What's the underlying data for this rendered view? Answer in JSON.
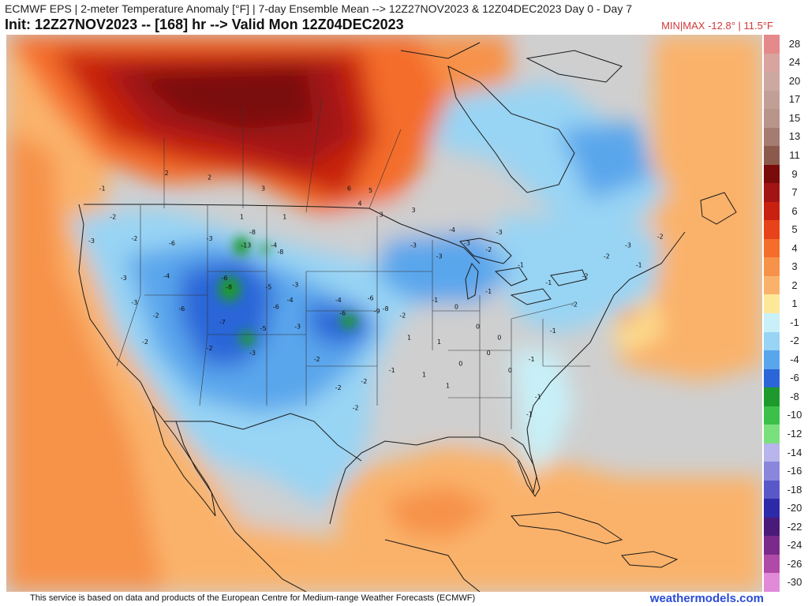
{
  "header": {
    "title_line1": "ECMWF EPS | 2-meter Temperature Anomaly [°F] | 7-day Ensemble Mean --> 12Z27NOV2023 & 12Z04DEC2023   Day 0 - Day 7",
    "title_line2": "Init: 12Z27NOV2023 -- [168] hr --> Valid Mon 12Z04DEC2023",
    "minmax": "MIN|MAX -12.8° | 11.5°F"
  },
  "colorbar": {
    "units": "°F",
    "steps": [
      {
        "label": "28",
        "color": "#e58a8a"
      },
      {
        "label": "24",
        "color": "#d9a4a0"
      },
      {
        "label": "20",
        "color": "#cda8a1"
      },
      {
        "label": "17",
        "color": "#c19f97"
      },
      {
        "label": "15",
        "color": "#b8948b"
      },
      {
        "label": "13",
        "color": "#a57c71"
      },
      {
        "label": "11",
        "color": "#8c5a4d"
      },
      {
        "label": "9",
        "color": "#7a0b0b"
      },
      {
        "label": "7",
        "color": "#a31414"
      },
      {
        "label": "6",
        "color": "#c8210f"
      },
      {
        "label": "5",
        "color": "#e8421a"
      },
      {
        "label": "4",
        "color": "#f46d2a"
      },
      {
        "label": "3",
        "color": "#f7924a"
      },
      {
        "label": "2",
        "color": "#fab26a"
      },
      {
        "label": "1",
        "color": "#fde89a"
      },
      {
        "label": "-1",
        "color": "#c8f0f8"
      },
      {
        "label": "-2",
        "color": "#98d4f4"
      },
      {
        "label": "-4",
        "color": "#5aa6ec"
      },
      {
        "label": "-6",
        "color": "#2a66d8"
      },
      {
        "label": "-8",
        "color": "#1e9a2c"
      },
      {
        "label": "-10",
        "color": "#3cc04a"
      },
      {
        "label": "-12",
        "color": "#7ae07e"
      },
      {
        "label": "-14",
        "color": "#b8b4ec"
      },
      {
        "label": "-16",
        "color": "#8a86dc"
      },
      {
        "label": "-18",
        "color": "#5a58c8"
      },
      {
        "label": "-20",
        "color": "#2c2aa8"
      },
      {
        "label": "-22",
        "color": "#4a1a7a"
      },
      {
        "label": "-24",
        "color": "#7a2a8a"
      },
      {
        "label": "-26",
        "color": "#b04aa8"
      },
      {
        "label": "-30",
        "color": "#e08ad8"
      }
    ]
  },
  "map": {
    "anomaly_labels": [
      {
        "v": "2",
        "lon": -116,
        "lat": 50
      },
      {
        "v": "2",
        "lon": -112,
        "lat": 49.6
      },
      {
        "v": "3",
        "lon": -107,
        "lat": 48.6
      },
      {
        "v": "6",
        "lon": -99,
        "lat": 48.6
      },
      {
        "v": "5",
        "lon": -97,
        "lat": 48.4
      },
      {
        "v": "4",
        "lon": -98,
        "lat": 47.2
      },
      {
        "v": "3",
        "lon": -96,
        "lat": 46.2
      },
      {
        "v": "3",
        "lon": -93,
        "lat": 46.6
      },
      {
        "v": "1",
        "lon": -109,
        "lat": 46
      },
      {
        "v": "1",
        "lon": -105,
        "lat": 46
      },
      {
        "v": "-1",
        "lon": -122,
        "lat": 48.6
      },
      {
        "v": "-2",
        "lon": -121,
        "lat": 46
      },
      {
        "v": "-3",
        "lon": -123,
        "lat": 43.8
      },
      {
        "v": "-2",
        "lon": -119,
        "lat": 44
      },
      {
        "v": "-6",
        "lon": -115.5,
        "lat": 43.6
      },
      {
        "v": "-3",
        "lon": -112,
        "lat": 44
      },
      {
        "v": "-8",
        "lon": -108,
        "lat": 44.6
      },
      {
        "v": "-13",
        "lon": -108.6,
        "lat": 43.4
      },
      {
        "v": "-4",
        "lon": -106,
        "lat": 43.4
      },
      {
        "v": "-8",
        "lon": -105.4,
        "lat": 42.8
      },
      {
        "v": "-3",
        "lon": -120,
        "lat": 40.4
      },
      {
        "v": "-4",
        "lon": -116,
        "lat": 40.6
      },
      {
        "v": "-6",
        "lon": -110.6,
        "lat": 40.4
      },
      {
        "v": "-8",
        "lon": -110.2,
        "lat": 39.6
      },
      {
        "v": "-5",
        "lon": -106.5,
        "lat": 39.6
      },
      {
        "v": "-3",
        "lon": -104,
        "lat": 39.8
      },
      {
        "v": "-4",
        "lon": -104.5,
        "lat": 38.4
      },
      {
        "v": "-6",
        "lon": -105.8,
        "lat": 37.8
      },
      {
        "v": "-3",
        "lon": -119,
        "lat": 38.2
      },
      {
        "v": "-2",
        "lon": -117,
        "lat": 37
      },
      {
        "v": "-6",
        "lon": -114.6,
        "lat": 37.6
      },
      {
        "v": "-7",
        "lon": -110.8,
        "lat": 36.4
      },
      {
        "v": "-5",
        "lon": -107,
        "lat": 35.8
      },
      {
        "v": "-3",
        "lon": -103.8,
        "lat": 36
      },
      {
        "v": "-4",
        "lon": -100,
        "lat": 38.4
      },
      {
        "v": "-6",
        "lon": -97,
        "lat": 38.6
      },
      {
        "v": "-9",
        "lon": -96.4,
        "lat": 37.4
      },
      {
        "v": "-8",
        "lon": -95.6,
        "lat": 37.6
      },
      {
        "v": "-6",
        "lon": -99.6,
        "lat": 37.2
      },
      {
        "v": "-2",
        "lon": -94,
        "lat": 37
      },
      {
        "v": "-2",
        "lon": -112,
        "lat": 34
      },
      {
        "v": "-3",
        "lon": -108,
        "lat": 33.6
      },
      {
        "v": "-2",
        "lon": -118,
        "lat": 34.6
      },
      {
        "v": "-2",
        "lon": -102,
        "lat": 33
      },
      {
        "v": "-2",
        "lon": -100,
        "lat": 30.4
      },
      {
        "v": "-2",
        "lon": -97.6,
        "lat": 31
      },
      {
        "v": "-1",
        "lon": -95,
        "lat": 32
      },
      {
        "v": "-2",
        "lon": -98.4,
        "lat": 28.6
      },
      {
        "v": "-3",
        "lon": -93,
        "lat": 43.4
      },
      {
        "v": "-3",
        "lon": -90.6,
        "lat": 42.4
      },
      {
        "v": "-3",
        "lon": -88,
        "lat": 43.6
      },
      {
        "v": "-2",
        "lon": -86,
        "lat": 43
      },
      {
        "v": "-3",
        "lon": -85,
        "lat": 44.6
      },
      {
        "v": "-4",
        "lon": -89.4,
        "lat": 44.8
      },
      {
        "v": "-1",
        "lon": -83,
        "lat": 41.6
      },
      {
        "v": "-1",
        "lon": -80.4,
        "lat": 40
      },
      {
        "v": "-2",
        "lon": -77,
        "lat": 40.6
      },
      {
        "v": "-2",
        "lon": -75,
        "lat": 42.4
      },
      {
        "v": "-3",
        "lon": -73,
        "lat": 43.4
      },
      {
        "v": "-2",
        "lon": -70,
        "lat": 44.2
      },
      {
        "v": "-1",
        "lon": -72,
        "lat": 41.6
      },
      {
        "v": "-2",
        "lon": -78,
        "lat": 38
      },
      {
        "v": "-1",
        "lon": -80,
        "lat": 35.6
      },
      {
        "v": "-1",
        "lon": -82,
        "lat": 33
      },
      {
        "v": "-1",
        "lon": -81.4,
        "lat": 29.6
      },
      {
        "v": "-1",
        "lon": -82.2,
        "lat": 28
      },
      {
        "v": "0",
        "lon": -86,
        "lat": 33.6
      },
      {
        "v": "0",
        "lon": -88.6,
        "lat": 32.6
      },
      {
        "v": "0",
        "lon": -84,
        "lat": 32
      },
      {
        "v": "1",
        "lon": -90.6,
        "lat": 34.6
      },
      {
        "v": "1",
        "lon": -92,
        "lat": 31.6
      },
      {
        "v": "0",
        "lon": -87,
        "lat": 36
      },
      {
        "v": "1",
        "lon": -93.4,
        "lat": 35
      },
      {
        "v": "0",
        "lon": -85,
        "lat": 35
      },
      {
        "v": "1",
        "lon": -89.8,
        "lat": 30.6
      },
      {
        "v": "-1",
        "lon": -91,
        "lat": 38.4
      },
      {
        "v": "0",
        "lon": -89,
        "lat": 37.8
      },
      {
        "v": "-1",
        "lon": -86,
        "lat": 39.2
      }
    ]
  },
  "footer": {
    "credit": "This service is based on data and products of the European Centre for Medium-range Weather Forecasts (ECMWF)",
    "brand": "weathermodels.com"
  }
}
